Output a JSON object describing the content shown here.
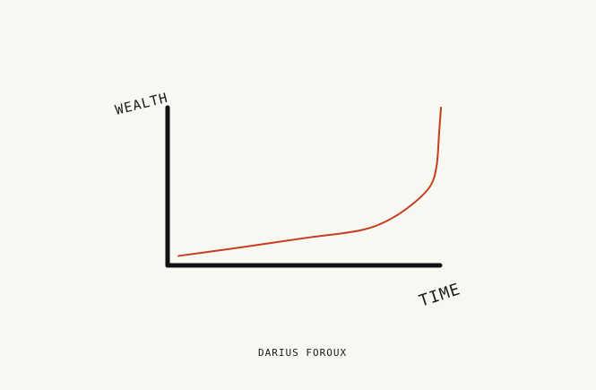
{
  "chart_data": {
    "type": "line",
    "title": "",
    "xlabel": "TIME",
    "ylabel": "WEALTH",
    "xlim": [
      0,
      100
    ],
    "ylim": [
      0,
      100
    ],
    "grid": false,
    "ticks": false,
    "series": [
      {
        "x": [
          4,
          21,
          37,
          53,
          70,
          80,
          89,
          96,
          98.4,
          99.3,
          100
        ],
        "y": [
          6,
          10,
          14,
          18,
          22,
          28,
          38,
          50,
          63,
          83,
          100
        ],
        "color": "#c63d1f"
      }
    ],
    "axis_color": "#111111",
    "background": "#f8f8f3"
  },
  "credit": "DARIUS FOROUX"
}
